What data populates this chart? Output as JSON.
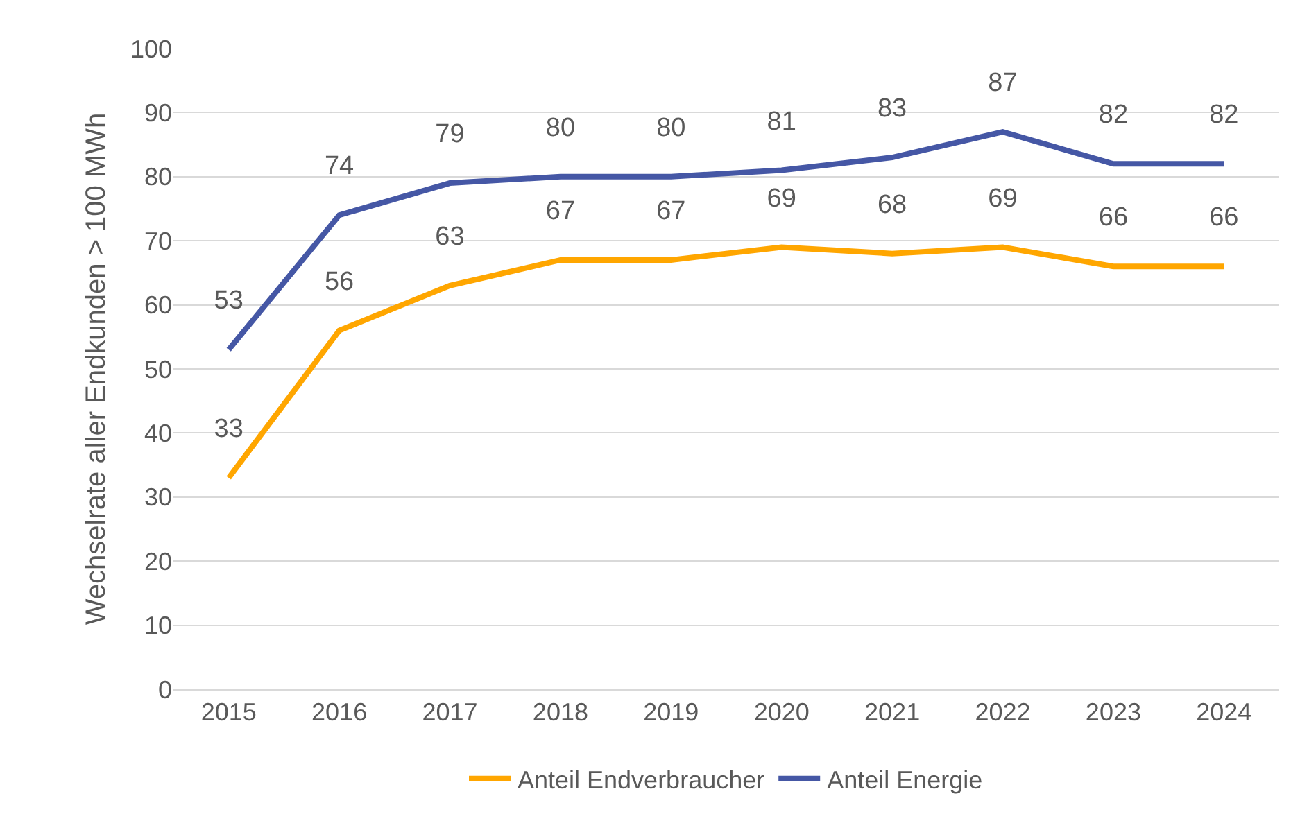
{
  "chart_data": {
    "type": "line",
    "ylabel": "Wechselrate aller Endkunden > 100 MWh",
    "categories": [
      "2015",
      "2016",
      "2017",
      "2018",
      "2019",
      "2020",
      "2021",
      "2022",
      "2023",
      "2024"
    ],
    "series": [
      {
        "name": "Anteil Endverbraucher",
        "color": "#ffa600",
        "values": [
          33,
          56,
          63,
          67,
          67,
          69,
          68,
          69,
          66,
          66
        ]
      },
      {
        "name": "Anteil Energie",
        "color": "#4557a5",
        "values": [
          53,
          74,
          79,
          80,
          80,
          81,
          83,
          87,
          82,
          82
        ]
      }
    ],
    "ylim": [
      0,
      100
    ],
    "yticks": [
      0,
      10,
      20,
      30,
      40,
      50,
      60,
      70,
      80,
      90,
      100
    ],
    "grid": "y",
    "legend": "bottom",
    "marker": "none",
    "line_style": "solid",
    "data_labels": true
  }
}
